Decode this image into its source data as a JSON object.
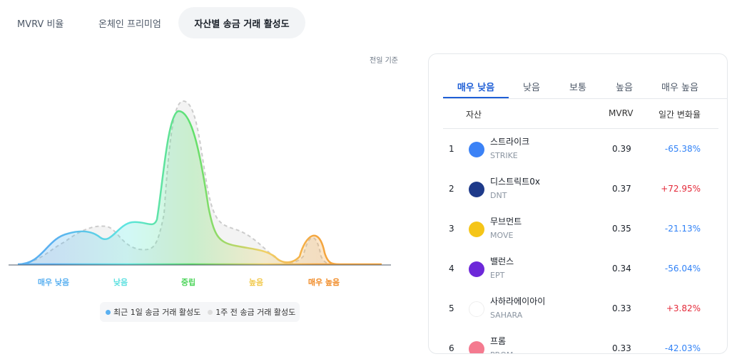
{
  "tabs": [
    "MVRV 비율",
    "온체인 프리미엄",
    "자산별 송금 거래 활성도"
  ],
  "chart": {
    "note": "전일 기준",
    "categories": [
      "매우 낮음",
      "낮음",
      "중립",
      "높음",
      "매우 높음"
    ],
    "legend": [
      "최근 1일 송금 거래 활성도",
      "1주 전 송금 거래 활성도"
    ]
  },
  "table": {
    "tabs": [
      "매우 낮음",
      "낮음",
      "보통",
      "높음",
      "매우 높음"
    ],
    "headers": [
      "자산",
      "MVRV",
      "일간 변화율"
    ],
    "rows": [
      [
        "1",
        "스트라이크",
        "STRIKE",
        "0.39",
        "-65.38%"
      ],
      [
        "2",
        "디스트릭트0x",
        "DNT",
        "0.37",
        "+72.95%"
      ],
      [
        "3",
        "무브먼트",
        "MOVE",
        "0.35",
        "-21.13%"
      ],
      [
        "4",
        "밸런스",
        "EPT",
        "0.34",
        "-56.04%"
      ],
      [
        "5",
        "사하라에이아이",
        "SAHARA",
        "0.33",
        "+3.82%"
      ],
      [
        "6",
        "프롬",
        "PROM",
        "0.33",
        "-42.03%"
      ]
    ]
  }
}
